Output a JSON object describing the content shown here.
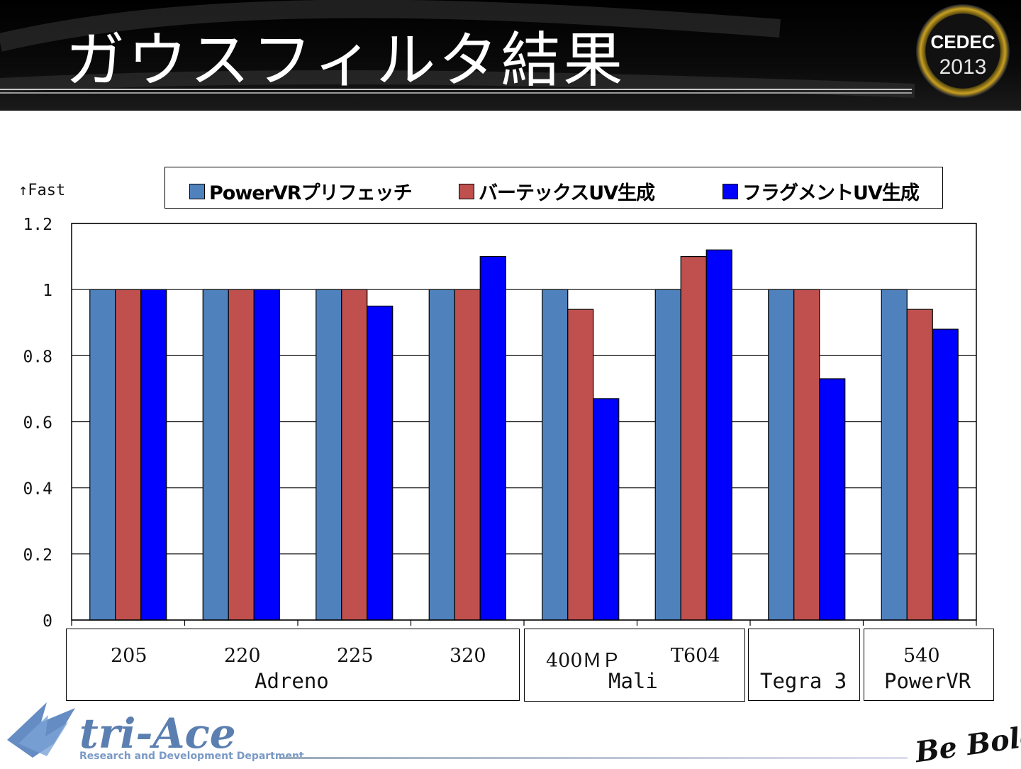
{
  "slide": {
    "title": "ガウスフィルタ結果",
    "logo_text": "CEDEC",
    "logo_year": "2013",
    "fast_label": "Fast",
    "footer_brand": "tri-Ace",
    "footer_dept": "Research and Development Department",
    "footer_slogan": "Be Bold!"
  },
  "chart_data": {
    "type": "bar",
    "categories": [
      "205",
      "220",
      "225",
      "320",
      "400ＭＰ",
      "T604",
      "Tegra 3",
      "540"
    ],
    "groups": [
      {
        "name": "Adreno",
        "subs": [
          "205",
          "220",
          "225",
          "320"
        ]
      },
      {
        "name": "Mali",
        "subs": [
          "400ＭＰ",
          "T604"
        ]
      },
      {
        "name": "Tegra 3",
        "subs": []
      },
      {
        "name": "PowerVR",
        "subs": [
          "540"
        ]
      }
    ],
    "series": [
      {
        "name": "PowerVRプリフェッチ",
        "color": "#4f81bd",
        "values": [
          1,
          1,
          1,
          1,
          1,
          1,
          1,
          1
        ]
      },
      {
        "name": "バーテックスUV生成",
        "color": "#c0504d",
        "values": [
          1,
          1,
          1,
          1,
          0.94,
          1.1,
          1,
          0.94
        ]
      },
      {
        "name": "フラグメントUV生成",
        "color": "#0000ff",
        "values": [
          1,
          1,
          0.95,
          1.1,
          0.67,
          1.12,
          0.73,
          0.88
        ]
      }
    ],
    "ylim": [
      0,
      1.2
    ],
    "yticks": [
      "0",
      "0.2",
      "0.4",
      "0.6",
      "0.8",
      "1",
      "1.2"
    ],
    "grid": true,
    "legend": "top"
  }
}
